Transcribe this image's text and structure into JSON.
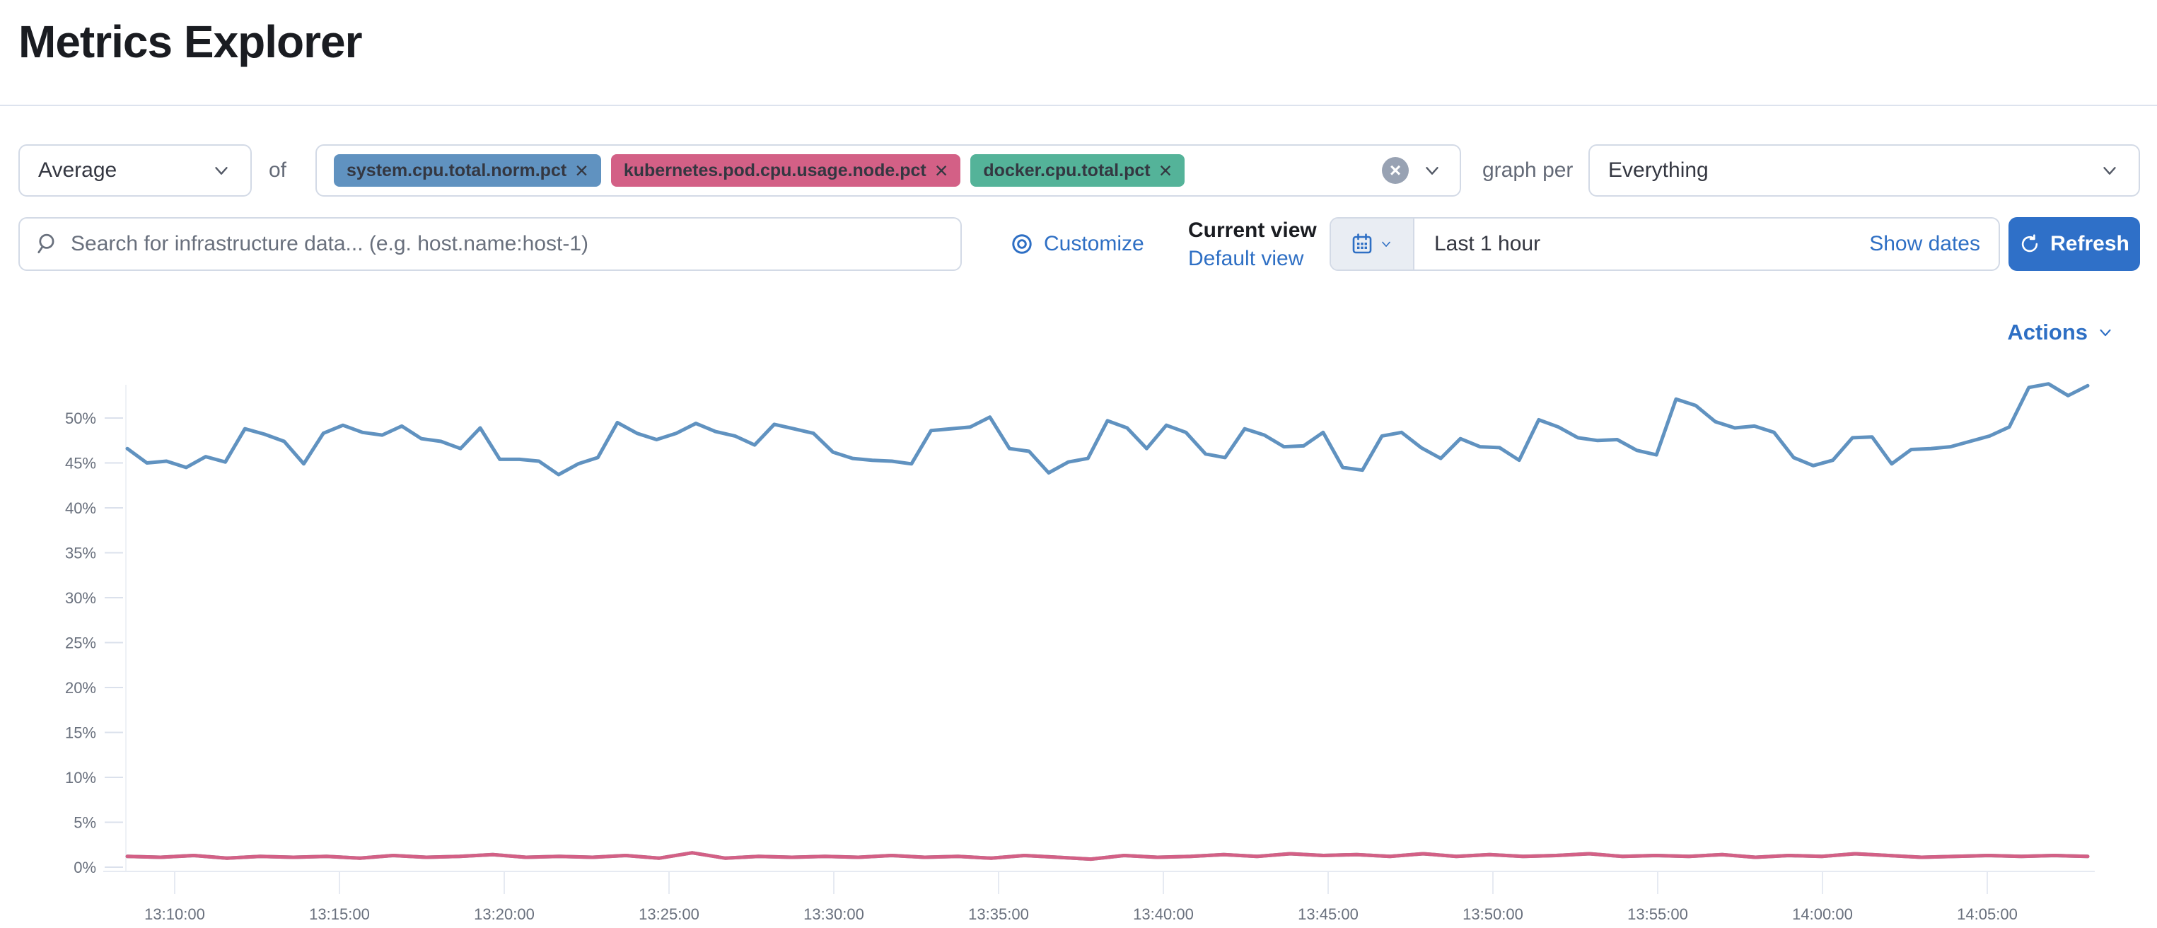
{
  "page": {
    "title": "Metrics Explorer"
  },
  "toolbar": {
    "aggregation": {
      "value": "Average"
    },
    "of_label": "of",
    "metrics": [
      {
        "label": "system.cpu.total.norm.pct",
        "remove_label": "×",
        "color": "#6092C0"
      },
      {
        "label": "kubernetes.pod.cpu.usage.node.pct",
        "remove_label": "×",
        "color": "#D36086"
      },
      {
        "label": "docker.cpu.total.pct",
        "remove_label": "×",
        "color": "#54B399"
      }
    ],
    "clear_all_label": "×",
    "graph_per_label": "graph per",
    "graph_per": {
      "value": "Everything"
    }
  },
  "filter_bar": {
    "search_placeholder": "Search for infrastructure data... (e.g. host.name:host-1)",
    "customize_label": "Customize",
    "current_view_label": "Current view",
    "selected_view": "Default view",
    "time_range": "Last 1 hour",
    "show_dates_label": "Show dates",
    "refresh_label": "Refresh"
  },
  "actions_label": "Actions",
  "colors": {
    "primary_button": "#2F70C8",
    "link": "#2E6FC4",
    "border": "#D3DAE6",
    "axis_text": "#69707D",
    "series_blue": "#6092C0",
    "series_pink": "#D36086",
    "series_green": "#54B399"
  },
  "chart_data": {
    "type": "line",
    "title": "",
    "xlabel": "",
    "ylabel": "",
    "unit": "%",
    "ylim": [
      0,
      55
    ],
    "grid": false,
    "legend_position": "none",
    "x_ticks": [
      "13:10:00",
      "13:15:00",
      "13:20:00",
      "13:25:00",
      "13:30:00",
      "13:35:00",
      "13:40:00",
      "13:45:00",
      "13:50:00",
      "13:55:00",
      "14:00:00",
      "14:05:00"
    ],
    "y_ticks_pct": [
      0,
      5,
      10,
      15,
      20,
      25,
      30,
      35,
      40,
      45,
      50
    ],
    "series": [
      {
        "name": "system.cpu.total.norm.pct",
        "color": "#6092C0",
        "values": [
          46.6,
          45.0,
          45.2,
          44.5,
          45.7,
          45.1,
          48.8,
          48.2,
          47.4,
          44.9,
          48.3,
          49.2,
          48.4,
          48.1,
          49.1,
          47.7,
          47.4,
          46.6,
          48.9,
          45.4,
          45.4,
          45.2,
          43.7,
          44.9,
          45.6,
          49.5,
          48.3,
          47.6,
          48.3,
          49.4,
          48.5,
          48.0,
          47.0,
          49.3,
          48.8,
          48.3,
          46.2,
          45.5,
          45.3,
          45.2,
          44.9,
          48.6,
          48.8,
          49.0,
          50.1,
          46.6,
          46.3,
          43.9,
          45.1,
          45.5,
          49.7,
          48.9,
          46.6,
          49.2,
          48.4,
          46.0,
          45.6,
          48.8,
          48.1,
          46.8,
          46.9,
          48.4,
          44.5,
          44.2,
          48.0,
          48.4,
          46.7,
          45.5,
          47.7,
          46.8,
          46.7,
          45.3,
          49.8,
          49.0,
          47.8,
          47.5,
          47.6,
          46.4,
          45.9,
          52.1,
          51.4,
          49.6,
          48.9,
          49.1,
          48.4,
          45.6,
          44.7,
          45.3,
          47.8,
          47.9,
          44.9,
          46.5,
          46.6,
          46.8,
          47.4,
          48.0,
          49.0,
          53.4,
          53.8,
          52.5,
          53.6
        ]
      },
      {
        "name": "kubernetes.pod.cpu.usage.node.pct",
        "color": "#D36086",
        "values": [
          1.2,
          1.1,
          1.3,
          1.0,
          1.2,
          1.1,
          1.2,
          1.0,
          1.3,
          1.1,
          1.2,
          1.4,
          1.1,
          1.2,
          1.1,
          1.3,
          1.0,
          1.6,
          1.0,
          1.2,
          1.1,
          1.2,
          1.1,
          1.3,
          1.1,
          1.2,
          1.0,
          1.3,
          1.1,
          0.9,
          1.3,
          1.1,
          1.2,
          1.4,
          1.2,
          1.5,
          1.3,
          1.4,
          1.2,
          1.5,
          1.2,
          1.4,
          1.2,
          1.3,
          1.5,
          1.2,
          1.3,
          1.2,
          1.4,
          1.1,
          1.3,
          1.2,
          1.5,
          1.3,
          1.1,
          1.2,
          1.3,
          1.2,
          1.3,
          1.2
        ]
      },
      {
        "name": "docker.cpu.total.pct",
        "color": "#54B399",
        "values": [
          1.2,
          1.1,
          1.3,
          1.0,
          1.2,
          1.1,
          1.2,
          1.0,
          1.3,
          1.1,
          1.2,
          1.4,
          1.1,
          1.2,
          1.1,
          1.3,
          1.0,
          1.6,
          1.0,
          1.2,
          1.1,
          1.2,
          1.1,
          1.3,
          1.1,
          1.2,
          1.0,
          1.3,
          1.1,
          0.9,
          1.3,
          1.1,
          1.2,
          1.4,
          1.2,
          1.5,
          1.3,
          1.4,
          1.2,
          1.5,
          1.2,
          1.4,
          1.2,
          1.3,
          1.5,
          1.2,
          1.3,
          1.2,
          1.4,
          1.1,
          1.3,
          1.2,
          1.5,
          1.3,
          1.1,
          1.2,
          1.3,
          1.2,
          1.3,
          1.2
        ]
      }
    ]
  }
}
